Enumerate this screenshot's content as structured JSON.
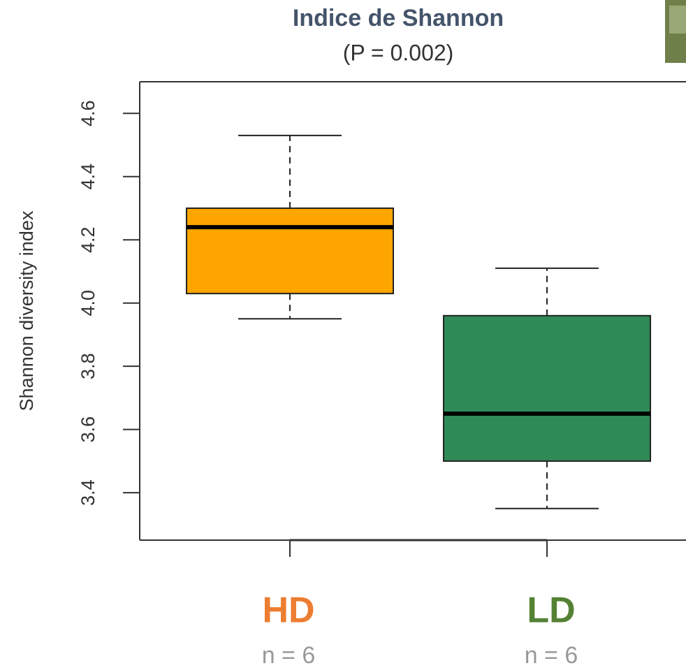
{
  "chart_data": {
    "type": "boxplot",
    "title": "Indice de Shannon",
    "subtitle": "(P = 0.002)",
    "ylabel": "Shannon diversity index",
    "categories": [
      "HD",
      "LD"
    ],
    "category_colors": [
      "#ED7D31",
      "#548235"
    ],
    "n_labels": [
      "n = 6",
      "n = 6"
    ],
    "box_colors": [
      "#FFA500",
      "#2E8B57"
    ],
    "boxes": [
      {
        "min": 3.95,
        "q1": 4.03,
        "median": 4.24,
        "q3": 4.3,
        "max": 4.53
      },
      {
        "min": 3.35,
        "q1": 3.5,
        "median": 3.65,
        "q3": 3.96,
        "max": 4.11
      }
    ],
    "ylim": [
      3.25,
      4.7
    ],
    "yticks": [
      {
        "value": 3.4,
        "label": "3.4"
      },
      {
        "value": 3.6,
        "label": "3.6"
      },
      {
        "value": 3.8,
        "label": "3.8"
      },
      {
        "value": 4.0,
        "label": "4.0"
      },
      {
        "value": 4.2,
        "label": "4.2"
      },
      {
        "value": 4.4,
        "label": "4.4"
      },
      {
        "value": 4.6,
        "label": "4.6"
      }
    ]
  }
}
